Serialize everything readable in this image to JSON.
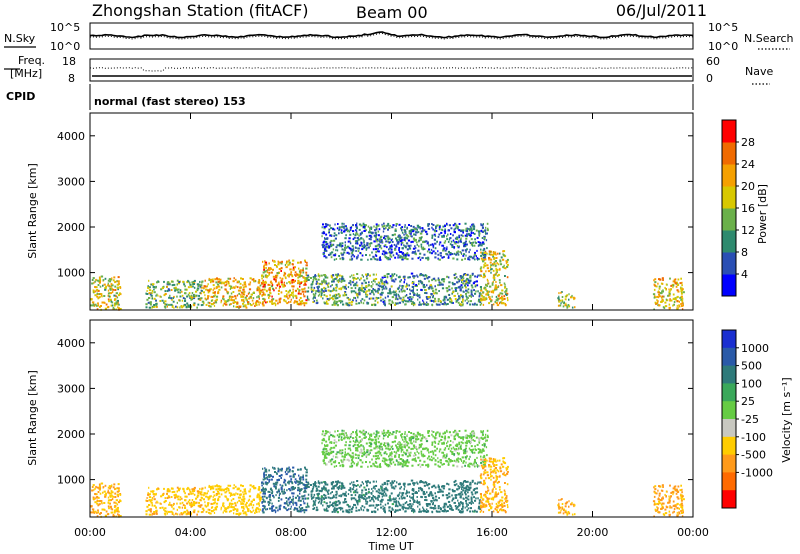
{
  "header": {
    "station": "Zhongshan Station (fitACF)",
    "beam": "Beam 00",
    "date": "06/Jul/2011"
  },
  "noise_panel": {
    "left_label": "N.Sky",
    "right_label": "N.Search",
    "ytick_top": "10^5",
    "ytick_bottom": "10^0"
  },
  "freq_panel": {
    "left_label_line1": "Freq.",
    "left_label_line2": "[MHz]",
    "right_label": "Nave",
    "left_ticks": [
      "18",
      "8"
    ],
    "right_ticks": [
      "60",
      "0"
    ]
  },
  "cpid_panel": {
    "label": "CPID",
    "mode": "normal (fast stereo) 153"
  },
  "axes": {
    "ylabel": "Slant Range [km]",
    "xlabel": "Time UT",
    "yticks": [
      "1000",
      "2000",
      "3000",
      "4000"
    ],
    "xticks": [
      "00:00",
      "04:00",
      "08:00",
      "12:00",
      "16:00",
      "20:00",
      "00:00"
    ]
  },
  "colorbars": {
    "power": {
      "label": "Power [dB]",
      "ticks": [
        "4",
        "8",
        "12",
        "16",
        "20",
        "24",
        "28"
      ],
      "colors": [
        "#0000ff",
        "#2a4fb4",
        "#2e8a6e",
        "#6ab04a",
        "#d8c800",
        "#f5a000",
        "#f06a00",
        "#ff0000"
      ]
    },
    "velocity": {
      "label": "Velocity [m s⁻¹]",
      "ticks": [
        "1000",
        "500",
        "100",
        "25",
        "-25",
        "-100",
        "-500",
        "-1000"
      ],
      "colors": [
        "#1a2fd0",
        "#2a5aa8",
        "#2e7a7a",
        "#3aa85a",
        "#66cc44",
        "#c8c8c0",
        "#ffcc00",
        "#ff9a1a",
        "#ff6a00",
        "#ff0000"
      ]
    }
  },
  "chart_data": {
    "type": "heatmap",
    "xlabel": "Time UT",
    "ylabel": "Slant Range [km]",
    "xlim": [
      0,
      24
    ],
    "ylim": [
      180,
      4500
    ],
    "echo_regions": [
      {
        "t0": 0.0,
        "t1": 1.2,
        "r0": 200,
        "r1": 950,
        "power": 18,
        "velocity": -300
      },
      {
        "t0": 2.2,
        "t1": 4.5,
        "r0": 250,
        "r1": 850,
        "power": 14,
        "velocity": -250
      },
      {
        "t0": 4.5,
        "t1": 6.8,
        "r0": 250,
        "r1": 900,
        "power": 20,
        "velocity": -200
      },
      {
        "t0": 6.8,
        "t1": 8.6,
        "r0": 300,
        "r1": 1300,
        "power": 22,
        "velocity": 300
      },
      {
        "t0": 8.6,
        "t1": 11.5,
        "r0": 300,
        "r1": 1000,
        "power": 12,
        "velocity": 120
      },
      {
        "t0": 9.2,
        "t1": 15.8,
        "r0": 1300,
        "r1": 2100,
        "power": 8,
        "velocity": 0
      },
      {
        "t0": 11.5,
        "t1": 15.5,
        "r0": 300,
        "r1": 1000,
        "power": 10,
        "velocity": 150
      },
      {
        "t0": 15.5,
        "t1": 16.6,
        "r0": 300,
        "r1": 1500,
        "power": 18,
        "velocity": -300
      },
      {
        "t0": 18.6,
        "t1": 19.3,
        "r0": 250,
        "r1": 600,
        "power": 16,
        "velocity": -300
      },
      {
        "t0": 22.4,
        "t1": 23.6,
        "r0": 200,
        "r1": 900,
        "power": 20,
        "velocity": -350
      }
    ]
  }
}
